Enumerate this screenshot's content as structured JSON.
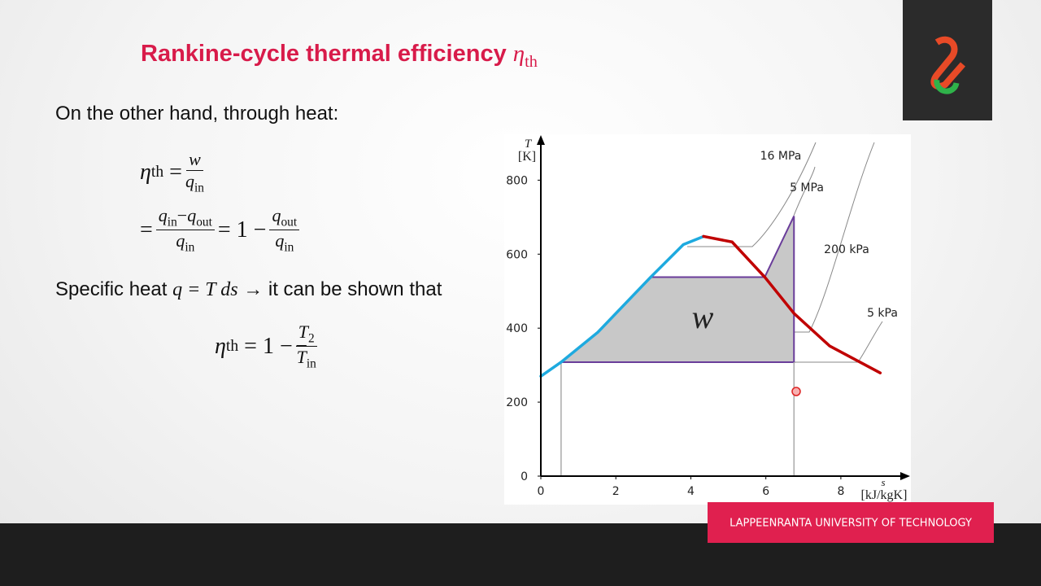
{
  "slide": {
    "title": "Rankine-cycle thermal efficiency",
    "title_symbol": "η",
    "title_symbol_sub": "th",
    "line1": "On the other hand, through heat:",
    "line2_pre": "Specific heat",
    "line2_formula": "q = T ds",
    "line2_post": "→ it can be shown that",
    "footer": "LAPPEENRANTA UNIVERSITY OF TECHNOLOGY"
  },
  "symbols": {
    "eta": "η",
    "th": "th",
    "eq": "=",
    "w": "w",
    "q": "q",
    "in": "in",
    "out": "out",
    "minus": "−",
    "one": "1",
    "T": "T",
    "two": "2"
  },
  "chart_data": {
    "type": "line",
    "x_label": "s",
    "x_unit": "[kJ/kgK]",
    "y_label": "T",
    "y_unit": "[K]",
    "area_label": "w",
    "xlim": [
      0,
      9.8
    ],
    "ylim": [
      0,
      880
    ],
    "xticks": [
      0,
      2,
      4,
      6,
      8
    ],
    "yticks": [
      0,
      200,
      400,
      600,
      800
    ],
    "annotations": [
      "16 MPa",
      "5 MPa",
      "200 kPa",
      "5 kPa"
    ],
    "cycle": {
      "color": "#6a3d9a",
      "fill": "#c8c8c8",
      "x": [
        0.54,
        1.52,
        2.93,
        5.97,
        6.75,
        6.75,
        0.54
      ],
      "values": [
        308,
        389,
        538,
        538,
        703,
        308,
        308
      ]
    },
    "series": [
      {
        "color": "#1eaadf",
        "x": [
          0,
          0.54,
          1.52,
          2.93,
          3.8,
          4.34
        ],
        "values": [
          270,
          308,
          389,
          538,
          626,
          648
        ]
      },
      {
        "color": "#c00000",
        "x": [
          4.34,
          5.1,
          5.97,
          6.75,
          7.7,
          9.05
        ],
        "values": [
          648,
          633,
          538,
          440,
          352,
          279
        ]
      }
    ]
  }
}
